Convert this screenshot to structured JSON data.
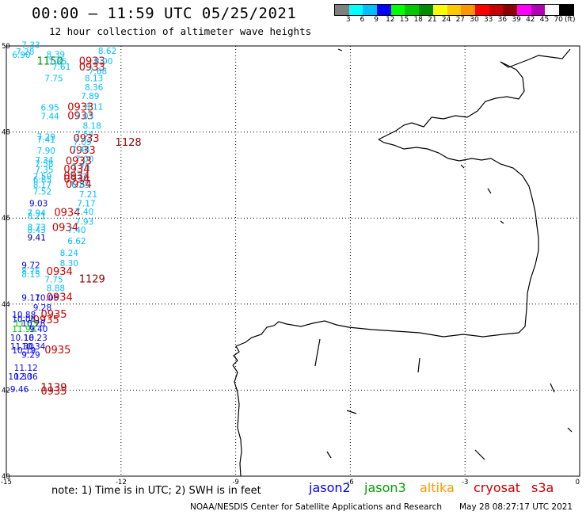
{
  "header": {
    "title": "00:00 – 11:59 UTC 05/25/2021",
    "subtitle": "12 hour collection of altimeter wave heights"
  },
  "legend": {
    "colors": [
      "#7f7f7f",
      "#00ffff",
      "#00bfff",
      "#0000ff",
      "#00ff00",
      "#00c800",
      "#008c00",
      "#ffff00",
      "#ffc800",
      "#ff9600",
      "#ff0000",
      "#c80000",
      "#8c0000",
      "#ff00ff",
      "#b400b4",
      "#ffffff",
      "#000000"
    ],
    "labels": [
      "3",
      "6",
      "9",
      "12",
      "15",
      "18",
      "21",
      "24",
      "27",
      "30",
      "33",
      "36",
      "39",
      "42",
      "45",
      "70"
    ],
    "unit": "(ft)"
  },
  "axes": {
    "lon_ticks": [
      "-15",
      "-12",
      "-9",
      "-6",
      "-3",
      "0"
    ],
    "lat_ticks": [
      "50",
      "48",
      "46",
      "44",
      "42",
      "40"
    ]
  },
  "observations": [
    {
      "v": "7.33",
      "lon": -14.6,
      "lat": 49.95,
      "c": "#00bfff"
    },
    {
      "v": "7.28",
      "lon": -14.75,
      "lat": 49.8,
      "c": "#00bfff"
    },
    {
      "v": "6.90",
      "lon": -14.85,
      "lat": 49.72,
      "c": "#00bfff"
    },
    {
      "v": "8.62",
      "lon": -12.6,
      "lat": 49.82,
      "c": "#00bfff"
    },
    {
      "v": "8.39",
      "lon": -13.95,
      "lat": 49.73,
      "c": "#00bfff"
    },
    {
      "v": "1150",
      "lon": -14.2,
      "lat": 49.57,
      "c": "#008c00"
    },
    {
      "v": "7.85",
      "lon": -13.9,
      "lat": 49.57,
      "c": "#00bfff"
    },
    {
      "v": "0933",
      "lon": -13.1,
      "lat": 49.57,
      "c": "#c80000"
    },
    {
      "v": "8.00",
      "lon": -12.7,
      "lat": 49.58,
      "c": "#00bfff"
    },
    {
      "v": "7.61",
      "lon": -13.8,
      "lat": 49.45,
      "c": "#00bfff"
    },
    {
      "v": "0933",
      "lon": -13.1,
      "lat": 49.43,
      "c": "#c80000"
    },
    {
      "v": "7.68",
      "lon": -12.85,
      "lat": 49.35,
      "c": "#00bfff"
    },
    {
      "v": "7.75",
      "lon": -14.0,
      "lat": 49.18,
      "c": "#00bfff"
    },
    {
      "v": "8.13",
      "lon": -12.95,
      "lat": 49.18,
      "c": "#00bfff"
    },
    {
      "v": "8.36",
      "lon": -12.95,
      "lat": 48.97,
      "c": "#00bfff"
    },
    {
      "v": "7.89",
      "lon": -13.05,
      "lat": 48.77,
      "c": "#00bfff"
    },
    {
      "v": "6.95",
      "lon": -14.1,
      "lat": 48.5,
      "c": "#00bfff"
    },
    {
      "v": "0933",
      "lon": -13.4,
      "lat": 48.5,
      "c": "#c80000"
    },
    {
      "v": "8.11",
      "lon": -12.95,
      "lat": 48.52,
      "c": "#00bfff"
    },
    {
      "v": "7.44",
      "lon": -14.1,
      "lat": 48.3,
      "c": "#00bfff"
    },
    {
      "v": "0933",
      "lon": -13.4,
      "lat": 48.3,
      "c": "#c80000"
    },
    {
      "v": "7.03",
      "lon": -13.2,
      "lat": 48.3,
      "c": "#00bfff"
    },
    {
      "v": "8.18",
      "lon": -13.0,
      "lat": 48.08,
      "c": "#00bfff"
    },
    {
      "v": "7.54",
      "lon": -13.2,
      "lat": 47.88,
      "c": "#00bfff"
    },
    {
      "v": "7.29",
      "lon": -14.2,
      "lat": 47.82,
      "c": "#00bfff"
    },
    {
      "v": "7.41",
      "lon": -14.2,
      "lat": 47.75,
      "c": "#00bfff"
    },
    {
      "v": "0933",
      "lon": -13.25,
      "lat": 47.77,
      "c": "#c80000"
    },
    {
      "v": "7.09",
      "lon": -13.25,
      "lat": 47.7,
      "c": "#00bfff"
    },
    {
      "v": "1128",
      "lon": -12.15,
      "lat": 47.68,
      "c": "#8c0000"
    },
    {
      "v": "7.90",
      "lon": -14.2,
      "lat": 47.5,
      "c": "#00bfff"
    },
    {
      "v": "0933",
      "lon": -13.35,
      "lat": 47.5,
      "c": "#c80000"
    },
    {
      "v": "7.48",
      "lon": -13.3,
      "lat": 47.52,
      "c": "#00bfff"
    },
    {
      "v": "7.00",
      "lon": -13.2,
      "lat": 47.3,
      "c": "#00bfff"
    },
    {
      "v": "7.34",
      "lon": -14.25,
      "lat": 47.27,
      "c": "#00bfff"
    },
    {
      "v": "0933",
      "lon": -13.45,
      "lat": 47.25,
      "c": "#c80000"
    },
    {
      "v": "7.58",
      "lon": -14.25,
      "lat": 47.19,
      "c": "#00bfff"
    },
    {
      "v": "7.79",
      "lon": -13.3,
      "lat": 47.1,
      "c": "#00bfff"
    },
    {
      "v": "7.35",
      "lon": -14.25,
      "lat": 47.05,
      "c": "#00bfff"
    },
    {
      "v": "0934",
      "lon": -13.5,
      "lat": 47.05,
      "c": "#c80000"
    },
    {
      "v": "7.59",
      "lon": -14.3,
      "lat": 46.9,
      "c": "#00bfff"
    },
    {
      "v": "0934",
      "lon": -13.5,
      "lat": 46.9,
      "c": "#c80000"
    },
    {
      "v": "7.72",
      "lon": -13.35,
      "lat": 46.9,
      "c": "#00bfff"
    },
    {
      "v": "6.85",
      "lon": -14.3,
      "lat": 46.82,
      "c": "#00bfff"
    },
    {
      "v": "0934",
      "lon": -13.5,
      "lat": 46.82,
      "c": "#c80000"
    },
    {
      "v": "8.17",
      "lon": -14.3,
      "lat": 46.7,
      "c": "#00bfff"
    },
    {
      "v": "0934",
      "lon": -13.45,
      "lat": 46.7,
      "c": "#c80000"
    },
    {
      "v": "6.85",
      "lon": -13.3,
      "lat": 46.7,
      "c": "#00bfff"
    },
    {
      "v": "7.52",
      "lon": -14.3,
      "lat": 46.55,
      "c": "#00bfff"
    },
    {
      "v": "7.21",
      "lon": -13.1,
      "lat": 46.48,
      "c": "#00bfff"
    },
    {
      "v": "9.03",
      "lon": -14.4,
      "lat": 46.27,
      "c": "#0000ff"
    },
    {
      "v": "7.17",
      "lon": -13.15,
      "lat": 46.27,
      "c": "#00bfff"
    },
    {
      "v": "7.94",
      "lon": -14.45,
      "lat": 46.05,
      "c": "#00bfff"
    },
    {
      "v": "0934",
      "lon": -13.75,
      "lat": 46.05,
      "c": "#c80000"
    },
    {
      "v": "7.40",
      "lon": -13.2,
      "lat": 46.08,
      "c": "#00bfff"
    },
    {
      "v": "8.21",
      "lon": -14.45,
      "lat": 45.98,
      "c": "#00bfff"
    },
    {
      "v": "7.93",
      "lon": -13.2,
      "lat": 45.85,
      "c": "#00bfff"
    },
    {
      "v": "8.73",
      "lon": -14.45,
      "lat": 45.72,
      "c": "#00bfff"
    },
    {
      "v": "0934",
      "lon": -13.8,
      "lat": 45.7,
      "c": "#c80000"
    },
    {
      "v": "8.43",
      "lon": -14.45,
      "lat": 45.65,
      "c": "#00bfff"
    },
    {
      "v": "7.40",
      "lon": -13.4,
      "lat": 45.65,
      "c": "#00bfff"
    },
    {
      "v": "9.41",
      "lon": -14.45,
      "lat": 45.48,
      "c": "#000080"
    },
    {
      "v": "6.62",
      "lon": -13.4,
      "lat": 45.4,
      "c": "#00bfff"
    },
    {
      "v": "8.24",
      "lon": -13.6,
      "lat": 45.12,
      "c": "#00bfff"
    },
    {
      "v": "8.30",
      "lon": -13.6,
      "lat": 44.88,
      "c": "#00bfff"
    },
    {
      "v": "9.72",
      "lon": -14.6,
      "lat": 44.83,
      "c": "#0000ff"
    },
    {
      "v": "8.75",
      "lon": -14.6,
      "lat": 44.7,
      "c": "#00bfff"
    },
    {
      "v": "0934",
      "lon": -13.95,
      "lat": 44.68,
      "c": "#c80000"
    },
    {
      "v": "8.15",
      "lon": -14.6,
      "lat": 44.62,
      "c": "#00bfff"
    },
    {
      "v": "7.75",
      "lon": -14.0,
      "lat": 44.5,
      "c": "#00bfff"
    },
    {
      "v": "1129",
      "lon": -13.1,
      "lat": 44.5,
      "c": "#8c0000"
    },
    {
      "v": "8.88",
      "lon": -13.95,
      "lat": 44.3,
      "c": "#00bfff"
    },
    {
      "v": "9.17",
      "lon": -14.6,
      "lat": 44.08,
      "c": "#0000ff"
    },
    {
      "v": "10.06",
      "lon": -14.25,
      "lat": 44.08,
      "c": "#0000ff"
    },
    {
      "v": "0934",
      "lon": -13.95,
      "lat": 44.08,
      "c": "#c80000"
    },
    {
      "v": "9.28",
      "lon": -14.3,
      "lat": 43.85,
      "c": "#0000ff"
    },
    {
      "v": "10.88",
      "lon": -14.85,
      "lat": 43.68,
      "c": "#0000ff"
    },
    {
      "v": "0935",
      "lon": -14.1,
      "lat": 43.68,
      "c": "#c80000"
    },
    {
      "v": "10.06",
      "lon": -14.85,
      "lat": 43.58,
      "c": "#0000ff"
    },
    {
      "v": "0935",
      "lon": -14.3,
      "lat": 43.55,
      "c": "#c80000"
    },
    {
      "v": "11.53",
      "lon": -14.8,
      "lat": 43.48,
      "c": "#00c800"
    },
    {
      "v": "10.28",
      "lon": -14.6,
      "lat": 43.48,
      "c": "#0000ff"
    },
    {
      "v": "11.98",
      "lon": -14.85,
      "lat": 43.35,
      "c": "#00c800"
    },
    {
      "v": "9.40",
      "lon": -14.4,
      "lat": 43.35,
      "c": "#0000ff"
    },
    {
      "v": "10.18",
      "lon": -14.9,
      "lat": 43.15,
      "c": "#0000ff"
    },
    {
      "v": "10.23",
      "lon": -14.55,
      "lat": 43.15,
      "c": "#0000ff"
    },
    {
      "v": "11.30",
      "lon": -14.9,
      "lat": 42.95,
      "c": "#0000ff"
    },
    {
      "v": "10.34",
      "lon": -14.6,
      "lat": 42.95,
      "c": "#0000ff"
    },
    {
      "v": "10.19",
      "lon": -14.85,
      "lat": 42.85,
      "c": "#0000ff"
    },
    {
      "v": "0935",
      "lon": -14.0,
      "lat": 42.85,
      "c": "#c80000"
    },
    {
      "v": "9.29",
      "lon": -14.6,
      "lat": 42.75,
      "c": "#0000ff"
    },
    {
      "v": "11.12",
      "lon": -14.8,
      "lat": 42.45,
      "c": "#0000ff"
    },
    {
      "v": "10.30",
      "lon": -14.95,
      "lat": 42.25,
      "c": "#0000ff"
    },
    {
      "v": "12.36",
      "lon": -14.8,
      "lat": 42.25,
      "c": "#0000ff"
    },
    {
      "v": "9.46",
      "lon": -14.9,
      "lat": 41.95,
      "c": "#0000ff"
    },
    {
      "v": "1139",
      "lon": -14.1,
      "lat": 41.98,
      "c": "#8c0000"
    },
    {
      "v": "0935",
      "lon": -14.1,
      "lat": 41.9,
      "c": "#c80000"
    }
  ],
  "footer": {
    "note": "note: 1) Time is in UTC; 2) SWH is in feet",
    "satellites": [
      {
        "name": "jason2",
        "color": "#0000ff"
      },
      {
        "name": "jason3",
        "color": "#00a000"
      },
      {
        "name": "altika",
        "color": "#ff9600"
      },
      {
        "name": "cryosat",
        "color": "#c80000"
      },
      {
        "name": "s3a",
        "color": "#c80000"
      }
    ],
    "credit": "NOAA/NESDIS Center for Satellite Applications and Research",
    "timestamp": "May 28 08:27:17 UTC 2021"
  }
}
